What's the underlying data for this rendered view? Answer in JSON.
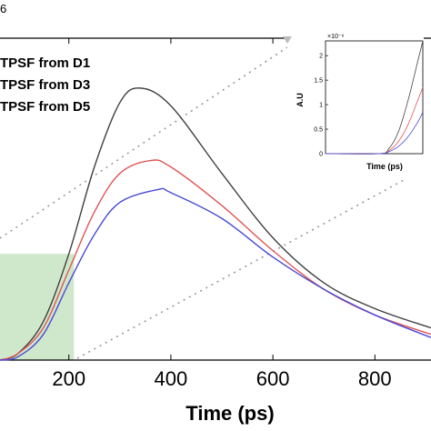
{
  "colors": {
    "d1": "#404040",
    "d3": "#e05555",
    "d5": "#4a4ad8",
    "highlight": "#cfe8cc",
    "guide": "#999999"
  },
  "chart_data": [
    {
      "type": "line",
      "corner_label": "6",
      "xlabel": "Time (ps)",
      "ylabel": "",
      "x_ticks": [
        200,
        400,
        600,
        800
      ],
      "xlim": [
        65,
        910
      ],
      "ylim": [
        0,
        1.0
      ],
      "legend_position": "top-left",
      "highlight_region": {
        "x": [
          65,
          210
        ],
        "y": [
          0,
          0.33
        ]
      },
      "series": [
        {
          "name": "TPSF from D1",
          "color_key": "d1",
          "peak_x": 340,
          "peak_y": 0.845,
          "x": [
            65,
            100,
            150,
            200,
            250,
            300,
            340,
            400,
            500,
            600,
            700,
            800,
            910
          ],
          "y": [
            0.0,
            0.02,
            0.12,
            0.33,
            0.6,
            0.8,
            0.845,
            0.79,
            0.58,
            0.38,
            0.24,
            0.16,
            0.1
          ]
        },
        {
          "name": "TPSF from D3",
          "color_key": "d3",
          "peak_x": 360,
          "peak_y": 0.62,
          "x": [
            65,
            100,
            150,
            200,
            250,
            300,
            360,
            400,
            500,
            600,
            700,
            800,
            910
          ],
          "y": [
            0.0,
            0.02,
            0.1,
            0.28,
            0.46,
            0.58,
            0.62,
            0.6,
            0.48,
            0.34,
            0.22,
            0.14,
            0.08
          ]
        },
        {
          "name": "TPSF from D5",
          "color_key": "d5",
          "peak_x": 375,
          "peak_y": 0.53,
          "x": [
            65,
            100,
            150,
            200,
            250,
            300,
            375,
            400,
            500,
            600,
            700,
            800,
            910
          ],
          "y": [
            0.0,
            0.01,
            0.08,
            0.24,
            0.39,
            0.49,
            0.53,
            0.52,
            0.44,
            0.32,
            0.22,
            0.14,
            0.07
          ]
        }
      ]
    },
    {
      "type": "line",
      "xlabel": "Time (ps)",
      "ylabel": "A.U",
      "y_exponent": "×10⁻⁶",
      "y_ticks": [
        0,
        0.5,
        1,
        1.5,
        2
      ],
      "ylim": [
        0,
        2.3
      ],
      "xlim": [
        0,
        1
      ],
      "series": [
        {
          "color_key": "d1",
          "x": [
            0,
            0.55,
            0.65,
            0.75,
            0.85,
            0.95,
            1.0
          ],
          "y": [
            0,
            0.0,
            0.1,
            0.45,
            1.1,
            1.9,
            2.3
          ]
        },
        {
          "color_key": "d3",
          "x": [
            0,
            0.55,
            0.65,
            0.75,
            0.85,
            0.95,
            1.0
          ],
          "y": [
            0,
            0.0,
            0.06,
            0.25,
            0.6,
            1.1,
            1.35
          ]
        },
        {
          "color_key": "d5",
          "x": [
            0,
            0.55,
            0.65,
            0.75,
            0.85,
            0.95,
            1.0
          ],
          "y": [
            0,
            0.0,
            0.04,
            0.15,
            0.35,
            0.65,
            0.85
          ]
        }
      ]
    }
  ]
}
